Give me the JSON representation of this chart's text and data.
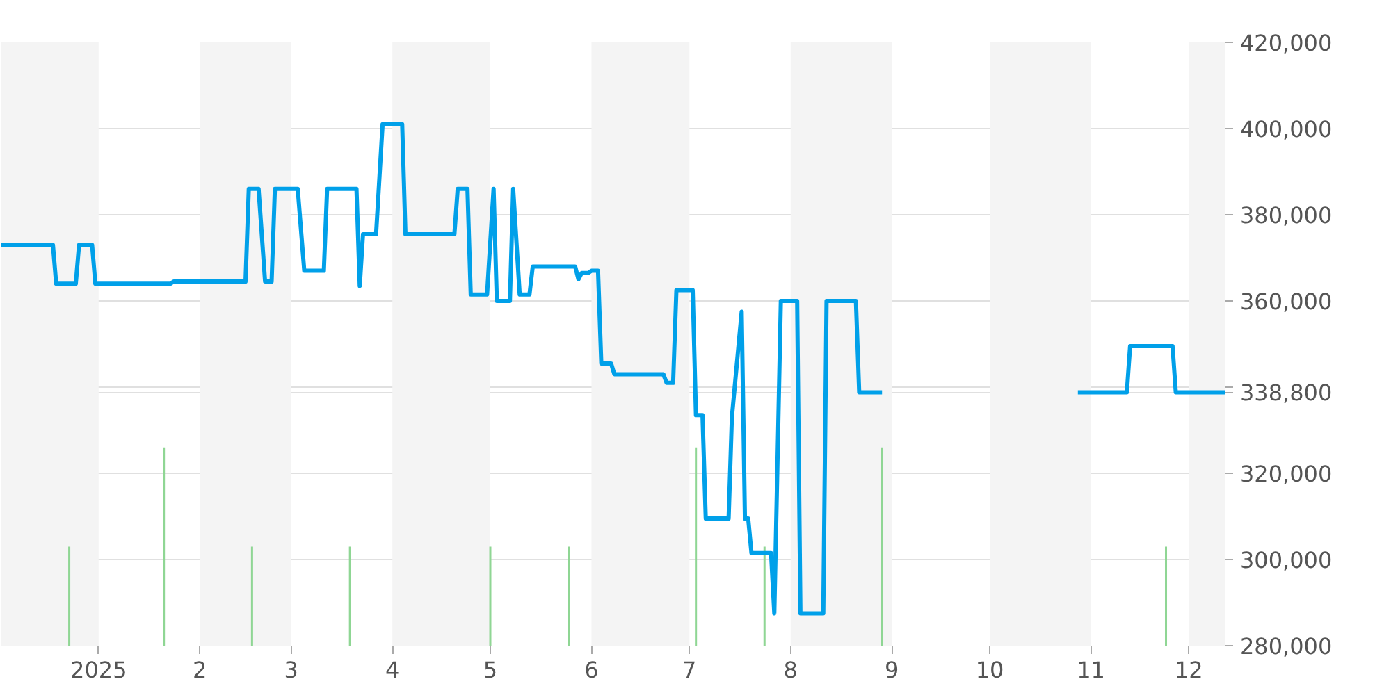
{
  "chart_data": {
    "type": "line",
    "xlim": [
      "2024-12-02",
      "2025-12-12"
    ],
    "ylim": [
      280000,
      420000
    ],
    "xticks": [
      {
        "value": "2025-01-01",
        "label": "2025"
      },
      {
        "value": "2025-02-01",
        "label": "2"
      },
      {
        "value": "2025-03-01",
        "label": "3"
      },
      {
        "value": "2025-04-01",
        "label": "4"
      },
      {
        "value": "2025-05-01",
        "label": "5"
      },
      {
        "value": "2025-06-01",
        "label": "6"
      },
      {
        "value": "2025-07-01",
        "label": "7"
      },
      {
        "value": "2025-08-01",
        "label": "8"
      },
      {
        "value": "2025-09-01",
        "label": "9"
      },
      {
        "value": "2025-10-01",
        "label": "10"
      },
      {
        "value": "2025-11-01",
        "label": "11"
      },
      {
        "value": "2025-12-01",
        "label": "12"
      }
    ],
    "yticks": [
      {
        "value": 280000,
        "label": "280,000"
      },
      {
        "value": 300000,
        "label": "300,000"
      },
      {
        "value": 320000,
        "label": "320,000"
      },
      {
        "value": 338800,
        "label": "338,800"
      },
      {
        "value": 340000,
        "label": null
      },
      {
        "value": 360000,
        "label": "360,000"
      },
      {
        "value": 380000,
        "label": "380,000"
      },
      {
        "value": 400000,
        "label": "400,000"
      },
      {
        "value": 420000,
        "label": "420,000"
      }
    ],
    "grid": "y",
    "bands": [
      {
        "axis": "x",
        "from": "2024-12-02",
        "to": "2025-01-01",
        "color": "#f4f4f4"
      },
      {
        "axis": "x",
        "from": "2025-02-01",
        "to": "2025-03-01",
        "color": "#f4f4f4"
      },
      {
        "axis": "x",
        "from": "2025-04-01",
        "to": "2025-05-01",
        "color": "#f4f4f4"
      },
      {
        "axis": "x",
        "from": "2025-06-01",
        "to": "2025-07-01",
        "color": "#f4f4f4"
      },
      {
        "axis": "x",
        "from": "2025-08-01",
        "to": "2025-09-01",
        "color": "#f4f4f4"
      },
      {
        "axis": "x",
        "from": "2025-10-01",
        "to": "2025-11-01",
        "color": "#f4f4f4"
      },
      {
        "axis": "x",
        "from": "2025-12-01",
        "to": "2025-12-12",
        "color": "#f4f4f4"
      }
    ],
    "series": [
      {
        "type": "bar",
        "color": "#8fd694",
        "x": [
          "2024-12-23",
          "2025-01-21",
          "2025-02-17",
          "2025-03-19",
          "2025-05-01",
          "2025-05-25",
          "2025-07-03",
          "2025-07-24",
          "2025-08-29",
          "2025-11-24"
        ],
        "values": [
          303000,
          326000,
          303000,
          303000,
          303000,
          303000,
          326000,
          303000,
          326000,
          303000
        ]
      },
      {
        "color": "#00a0e9",
        "x": [
          "2024-12-02",
          "2024-12-18",
          "2024-12-19",
          "2024-12-25",
          "2024-12-26",
          "2024-12-30",
          "2024-12-31",
          "2025-01-23",
          "2025-01-24",
          "2025-02-15",
          "2025-02-16",
          "2025-02-19",
          "2025-02-21",
          "2025-02-23",
          "2025-02-24",
          "2025-03-03",
          "2025-03-05",
          "2025-03-11",
          "2025-03-12",
          "2025-03-21",
          "2025-03-22",
          "2025-03-23",
          "2025-03-27",
          "2025-03-29",
          "2025-04-04",
          "2025-04-05",
          "2025-04-20",
          "2025-04-21",
          "2025-04-24",
          "2025-04-25",
          "2025-04-30",
          "2025-05-02",
          "2025-05-03",
          "2025-05-07",
          "2025-05-08",
          "2025-05-10",
          "2025-05-13",
          "2025-05-14",
          "2025-05-27",
          "2025-05-28",
          "2025-05-29",
          "2025-05-31",
          "2025-06-01",
          "2025-06-03",
          "2025-06-04",
          "2025-06-07",
          "2025-06-08",
          "2025-06-23",
          "2025-06-24",
          "2025-06-26",
          "2025-06-27",
          "2025-07-02",
          "2025-07-03",
          "2025-07-05",
          "2025-07-06",
          "2025-07-13",
          "2025-07-14",
          "2025-07-17",
          "2025-07-18",
          "2025-07-19",
          "2025-07-20",
          "2025-07-26",
          "2025-07-27",
          "2025-07-29",
          "2025-08-03",
          "2025-08-04",
          "2025-08-11",
          "2025-08-12",
          "2025-08-21",
          "2025-08-22",
          "2025-08-29",
          "2025-09-30",
          "2025-10-28",
          "2025-11-12",
          "2025-11-13",
          "2025-11-26",
          "2025-11-27",
          "2025-12-12"
        ],
        "values": [
          373000,
          373000,
          364000,
          364000,
          373000,
          373000,
          364000,
          364000,
          364500,
          364500,
          386000,
          386000,
          364500,
          364500,
          386000,
          386000,
          367000,
          367000,
          386000,
          386000,
          363500,
          375500,
          375500,
          401000,
          401000,
          375500,
          375500,
          386000,
          386000,
          361500,
          361500,
          386000,
          360000,
          360000,
          386000,
          361500,
          361500,
          368000,
          368000,
          365000,
          366500,
          366500,
          367000,
          367000,
          345500,
          345500,
          343000,
          343000,
          341000,
          341000,
          362500,
          362500,
          333500,
          333500,
          309500,
          309500,
          333000,
          357500,
          309500,
          309500,
          301500,
          301500,
          287500,
          360000,
          360000,
          287500,
          287500,
          360000,
          360000,
          338800,
          338800,
          null,
          338800,
          338800,
          349500,
          349500,
          338800,
          338800
        ]
      }
    ]
  }
}
